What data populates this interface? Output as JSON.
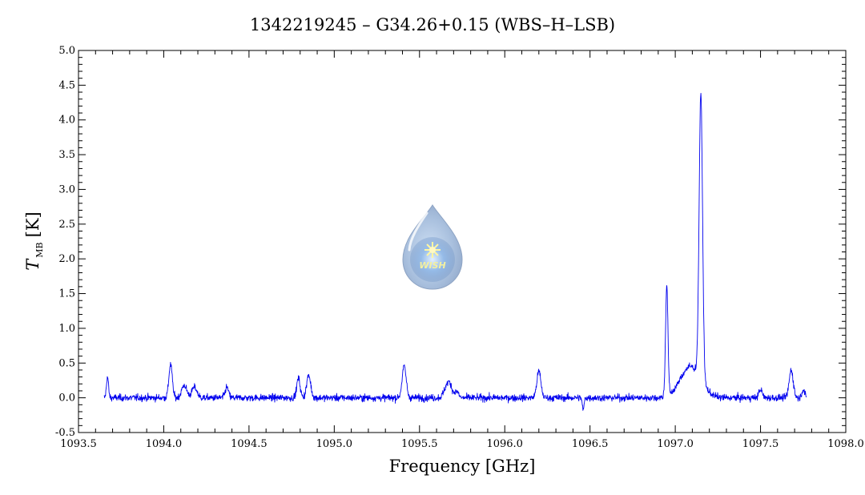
{
  "chart_data": {
    "type": "line",
    "title": "1342219245 – G34.26+0.15 (WBS–H–LSB)",
    "xlabel": "Frequency [GHz]",
    "ylabel_symbol": "T",
    "ylabel_subscript": "MB",
    "ylabel_unit": "[K]",
    "xlim": [
      1093.5,
      1098.0
    ],
    "ylim": [
      -0.5,
      5.0
    ],
    "x_ticks": [
      "1093.5",
      "1094.0",
      "1094.5",
      "1095.0",
      "1095.5",
      "1096.0",
      "1096.5",
      "1097.0",
      "1097.5",
      "1098.0"
    ],
    "y_ticks": [
      "-0.5",
      "0.0",
      "0.5",
      "1.0",
      "1.5",
      "2.0",
      "2.5",
      "3.0",
      "3.5",
      "4.0",
      "4.5",
      "5.0"
    ],
    "grid": false,
    "line_color": "#0000ee",
    "series": [
      {
        "x_range": [
          1093.65,
          1097.77
        ],
        "noise_rms": 0.05,
        "baseline": 0.0,
        "lines": [
          {
            "center": 1093.67,
            "amp": 0.3,
            "width": 0.006
          },
          {
            "center": 1094.04,
            "amp": 0.48,
            "width": 0.01
          },
          {
            "center": 1094.12,
            "amp": 0.18,
            "width": 0.015
          },
          {
            "center": 1094.18,
            "amp": 0.15,
            "width": 0.015
          },
          {
            "center": 1094.37,
            "amp": 0.15,
            "width": 0.01
          },
          {
            "center": 1094.79,
            "amp": 0.28,
            "width": 0.01
          },
          {
            "center": 1094.85,
            "amp": 0.32,
            "width": 0.012
          },
          {
            "center": 1095.41,
            "amp": 0.45,
            "width": 0.012
          },
          {
            "center": 1095.67,
            "amp": 0.23,
            "width": 0.02
          },
          {
            "center": 1095.72,
            "amp": 0.08,
            "width": 0.01
          },
          {
            "center": 1096.2,
            "amp": 0.38,
            "width": 0.012
          },
          {
            "center": 1096.46,
            "amp": -0.18,
            "width": 0.005
          },
          {
            "center": 1096.95,
            "amp": 1.6,
            "width": 0.007
          },
          {
            "center": 1097.09,
            "amp": 0.45,
            "width": 0.06
          },
          {
            "center": 1097.15,
            "amp": 4.1,
            "width": 0.01
          },
          {
            "center": 1097.5,
            "amp": 0.12,
            "width": 0.01
          },
          {
            "center": 1097.68,
            "amp": 0.4,
            "width": 0.012
          },
          {
            "center": 1097.75,
            "amp": 0.12,
            "width": 0.008
          }
        ]
      }
    ]
  },
  "watermark": {
    "text": "WISH",
    "icon": "wish-drop-logo"
  }
}
